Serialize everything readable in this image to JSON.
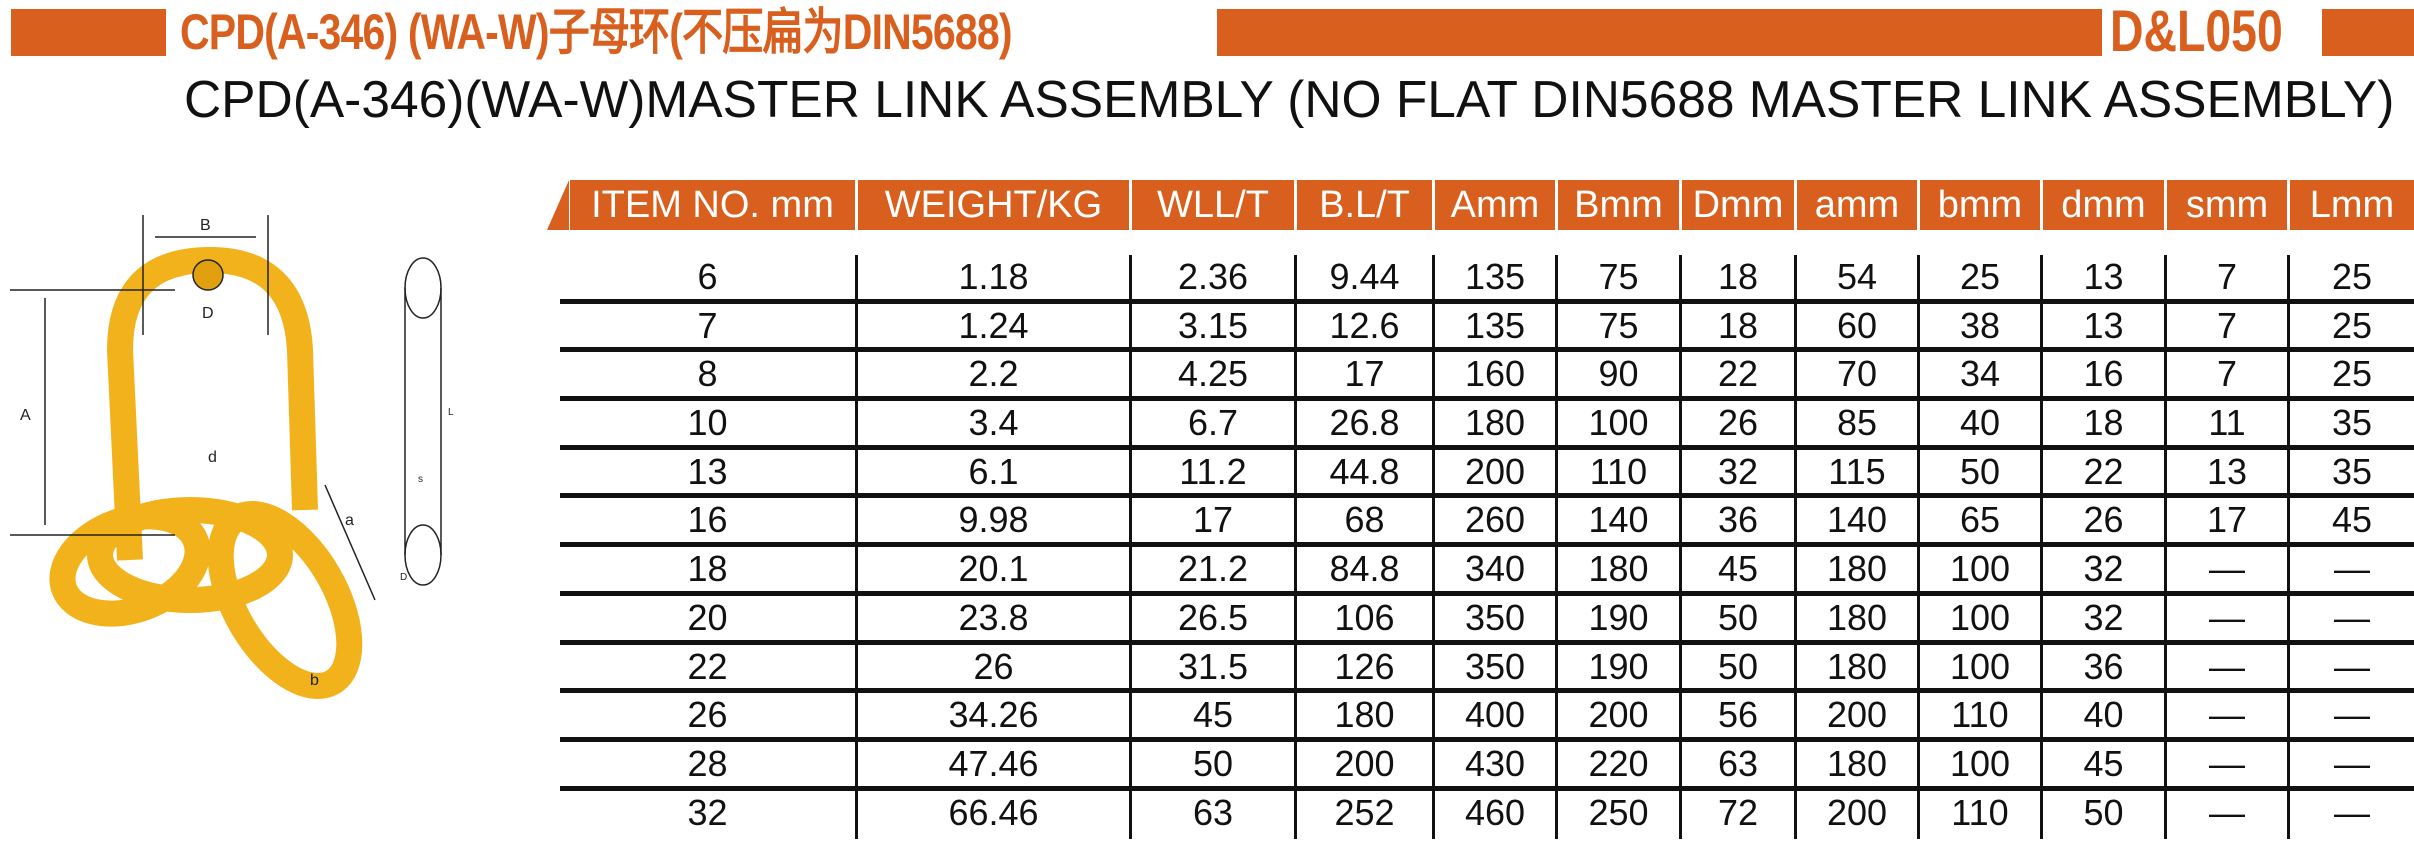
{
  "header": {
    "title": "CPD(A-346) (WA-W)子母环(不压扁为DIN5688)",
    "code": "D&L050",
    "subtitle": "CPD(A-346)(WA-W)MASTER LINK ASSEMBLY (NO FLAT DIN5688 MASTER LINK ASSEMBLY)",
    "accent_color": "#d95f1e"
  },
  "diagram": {
    "labels": {
      "A": "A",
      "B": "B",
      "D": "D",
      "a": "a",
      "b": "b",
      "d": "d",
      "s": "s",
      "L": "L",
      "D2": "D"
    },
    "link_color": "#f2b21c"
  },
  "table": {
    "columns": [
      "ITEM NO. mm",
      "WEIGHT/KG",
      "WLL/T",
      "B.L/T",
      "Amm",
      "Bmm",
      "Dmm",
      "amm",
      "bmm",
      "dmm",
      "smm",
      "Lmm"
    ],
    "rows": [
      [
        "6",
        "1.18",
        "2.36",
        "9.44",
        "135",
        "75",
        "18",
        "54",
        "25",
        "13",
        "7",
        "25"
      ],
      [
        "7",
        "1.24",
        "3.15",
        "12.6",
        "135",
        "75",
        "18",
        "60",
        "38",
        "13",
        "7",
        "25"
      ],
      [
        "8",
        "2.2",
        "4.25",
        "17",
        "160",
        "90",
        "22",
        "70",
        "34",
        "16",
        "7",
        "25"
      ],
      [
        "10",
        "3.4",
        "6.7",
        "26.8",
        "180",
        "100",
        "26",
        "85",
        "40",
        "18",
        "11",
        "35"
      ],
      [
        "13",
        "6.1",
        "11.2",
        "44.8",
        "200",
        "110",
        "32",
        "115",
        "50",
        "22",
        "13",
        "35"
      ],
      [
        "16",
        "9.98",
        "17",
        "68",
        "260",
        "140",
        "36",
        "140",
        "65",
        "26",
        "17",
        "45"
      ],
      [
        "18",
        "20.1",
        "21.2",
        "84.8",
        "340",
        "180",
        "45",
        "180",
        "100",
        "32",
        "—",
        "—"
      ],
      [
        "20",
        "23.8",
        "26.5",
        "106",
        "350",
        "190",
        "50",
        "180",
        "100",
        "32",
        "—",
        "—"
      ],
      [
        "22",
        "26",
        "31.5",
        "126",
        "350",
        "190",
        "50",
        "180",
        "100",
        "36",
        "—",
        "—"
      ],
      [
        "26",
        "34.26",
        "45",
        "180",
        "400",
        "200",
        "56",
        "200",
        "110",
        "40",
        "—",
        "—"
      ],
      [
        "28",
        "47.46",
        "50",
        "200",
        "430",
        "220",
        "63",
        "180",
        "100",
        "45",
        "—",
        "—"
      ],
      [
        "32",
        "66.46",
        "63",
        "252",
        "460",
        "250",
        "72",
        "200",
        "110",
        "50",
        "—",
        "—"
      ]
    ]
  }
}
